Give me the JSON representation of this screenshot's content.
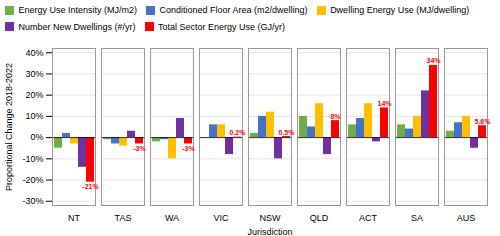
{
  "chart_data": {
    "type": "bar",
    "xlabel": "Jurisdiction",
    "ylabel": "Proportional Change 2018-2022",
    "categories": [
      "NT",
      "TAS",
      "WA",
      "VIC",
      "NSW",
      "QLD",
      "ACT",
      "SA",
      "AUS"
    ],
    "series": [
      {
        "name": "Energy Use Intensity (MJ/m2)",
        "color": "#70AD47",
        "values": [
          -5,
          -1,
          -2,
          0,
          2,
          10,
          6,
          6,
          3
        ]
      },
      {
        "name": "Conditioned Floor Area (m2/dwelling)",
        "color": "#4472C4",
        "values": [
          2,
          -3,
          -1,
          6,
          10,
          5,
          9,
          4,
          7
        ]
      },
      {
        "name": "Dwelling Energy Use (MJ/dwelling)",
        "color": "#FFC000",
        "values": [
          -3,
          -4,
          -10,
          6,
          12,
          16,
          16,
          10,
          10
        ]
      },
      {
        "name": "Number New Dwellings (#/yr)",
        "color": "#7030A0",
        "values": [
          -14,
          3,
          9,
          -8,
          -10,
          -8,
          -2,
          22,
          -5
        ]
      },
      {
        "name": "Total Sector Energy Use (GJ/yr)",
        "color": "#FF0000",
        "values": [
          -21,
          -3,
          -3,
          0.2,
          0.5,
          8,
          14,
          34,
          5.6
        ],
        "data_labels": true,
        "value_labels": [
          "-21%",
          "-3%",
          "-3%",
          "0.2%",
          "0.5%",
          "8%",
          "14%",
          "34%",
          "5.6%"
        ]
      }
    ],
    "ylim": [
      -32,
      42
    ],
    "yticks": [
      {
        "value": -30,
        "label": "-30%"
      },
      {
        "value": -20,
        "label": "-20%"
      },
      {
        "value": -10,
        "label": "-10%"
      },
      {
        "value": 0,
        "label": "0%"
      },
      {
        "value": 10,
        "label": "10%"
      },
      {
        "value": 20,
        "label": "20%"
      },
      {
        "value": 30,
        "label": "30%"
      },
      {
        "value": 40,
        "label": "40%"
      }
    ],
    "grid": true,
    "legend": "top"
  }
}
